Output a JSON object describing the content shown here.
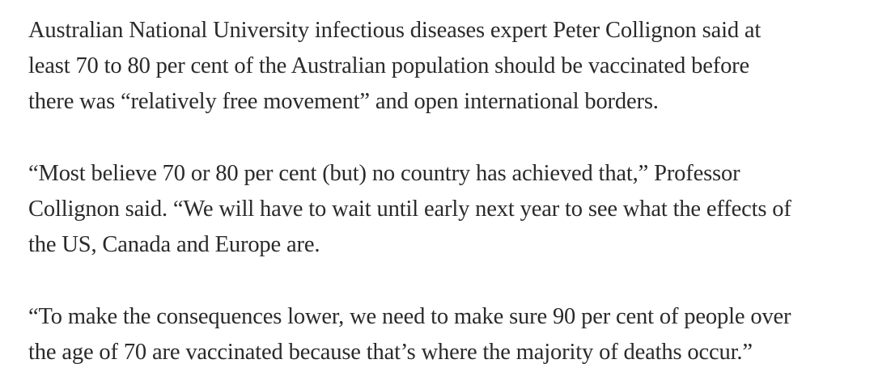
{
  "article": {
    "paragraphs": [
      {
        "lines": [
          "Australian National University infectious diseases expert Peter Collignon said at",
          "least 70 to 80 per cent of the Australian population should be vaccinated before",
          "there was “relatively free movement” and open international borders."
        ]
      },
      {
        "lines": [
          "“Most believe 70 or 80 per cent (but) no country has achieved that,” Professor",
          "Collignon said. “We will have to wait until early next year to see what the effects of",
          "the US, Canada and Europe are."
        ]
      },
      {
        "lines": [
          "“To make the consequences lower, we need to make sure 90 per cent of people over",
          "the age of 70 are vaccinated because that’s where the majority of deaths occur.”"
        ]
      }
    ]
  }
}
